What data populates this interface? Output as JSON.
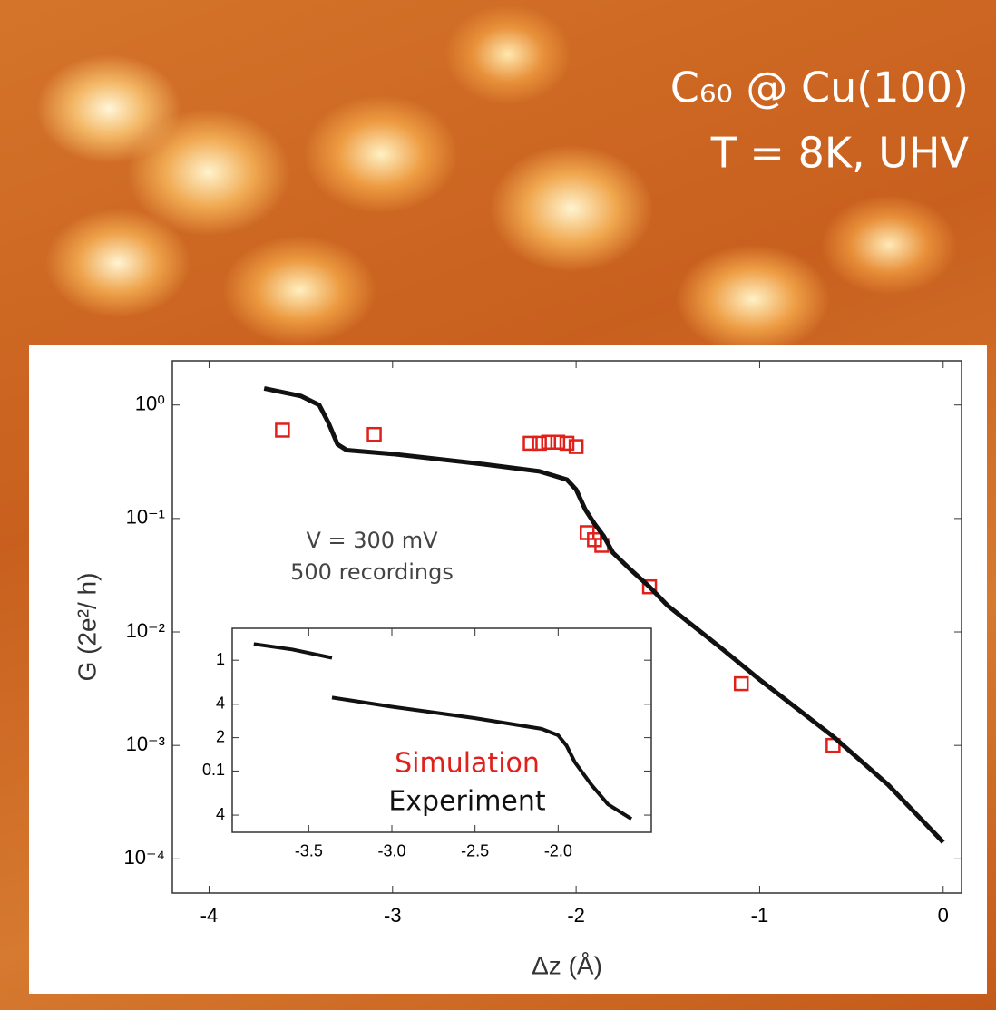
{
  "overlay": {
    "lines": [
      "C₆₀ @ Cu(100)",
      "T = 8K, UHV"
    ]
  },
  "chart_data": [
    {
      "type": "line",
      "log_y": true,
      "x_label": "Δz (Å)",
      "y_label": "G (2e²/ h)",
      "xlim": [
        -4.2,
        0.1
      ],
      "ylim": [
        5e-05,
        2.45
      ],
      "xticks": [
        -4,
        -3,
        -2,
        -1,
        0
      ],
      "yticks": [
        {
          "value": 1,
          "label": "10⁰"
        },
        {
          "value": 0.1,
          "label": "10⁻¹"
        },
        {
          "value": 0.01,
          "label": "10⁻²"
        },
        {
          "value": 0.001,
          "label": "10⁻³"
        },
        {
          "value": 0.0001,
          "label": "10⁻⁴"
        }
      ],
      "annotations": [
        "V = 300 mV",
        "500 recordings"
      ],
      "series": [
        {
          "name": "Simulation",
          "color": "#e0201b",
          "mode": "markers",
          "x": [
            -3.6,
            -3.1,
            -2.25,
            -2.2,
            -2.15,
            -2.1,
            -2.05,
            -2.0,
            -1.94,
            -1.9,
            -1.86,
            -1.6,
            -1.1,
            -0.6
          ],
          "values": [
            0.6,
            0.55,
            0.46,
            0.46,
            0.47,
            0.47,
            0.46,
            0.43,
            0.075,
            0.065,
            0.058,
            0.025,
            0.0035,
            0.001
          ]
        },
        {
          "name": "Experiment",
          "color": "#111111",
          "mode": "lines",
          "x": [
            -3.7,
            -3.5,
            -3.4,
            -3.35,
            -3.3,
            -3.25,
            -3.0,
            -2.5,
            -2.2,
            -2.05,
            -2.0,
            -1.95,
            -1.9,
            -1.85,
            -1.8,
            -1.7,
            -1.6,
            -1.5,
            -1.2,
            -1.0,
            -0.6,
            -0.3,
            0
          ],
          "values": [
            1.4,
            1.2,
            1.0,
            0.7,
            0.45,
            0.4,
            0.37,
            0.3,
            0.26,
            0.22,
            0.18,
            0.12,
            0.09,
            0.07,
            0.05,
            0.035,
            0.025,
            0.017,
            0.007,
            0.0038,
            0.0012,
            0.00045,
            0.00014
          ]
        }
      ]
    },
    {
      "type": "line",
      "log_y": true,
      "xlim": [
        -3.96,
        -1.44
      ],
      "ylim": [
        0.028,
        1.94
      ],
      "xticks": [
        -3.5,
        {
          "value": -3,
          "label": "-3.0"
        },
        -2.5,
        {
          "value": -2,
          "label": "-2.0"
        }
      ],
      "yticks": [
        1,
        {
          "value": 0.4,
          "label": "4"
        },
        {
          "value": 0.2,
          "label": "2"
        },
        0.1,
        {
          "value": 0.04,
          "label": "4"
        }
      ],
      "series": [
        {
          "color": "#111111",
          "mode": "lines",
          "x": [
            -3.83,
            -3.6,
            -3.36,
            null,
            -3.36,
            -3.0,
            -2.5,
            -2.1,
            -2.0,
            -1.95,
            -1.9,
            -1.8,
            -1.7,
            -1.56
          ],
          "values": [
            1.4,
            1.25,
            1.05,
            null,
            0.46,
            0.38,
            0.3,
            0.24,
            0.21,
            0.17,
            0.12,
            0.075,
            0.05,
            0.037
          ]
        }
      ]
    }
  ]
}
